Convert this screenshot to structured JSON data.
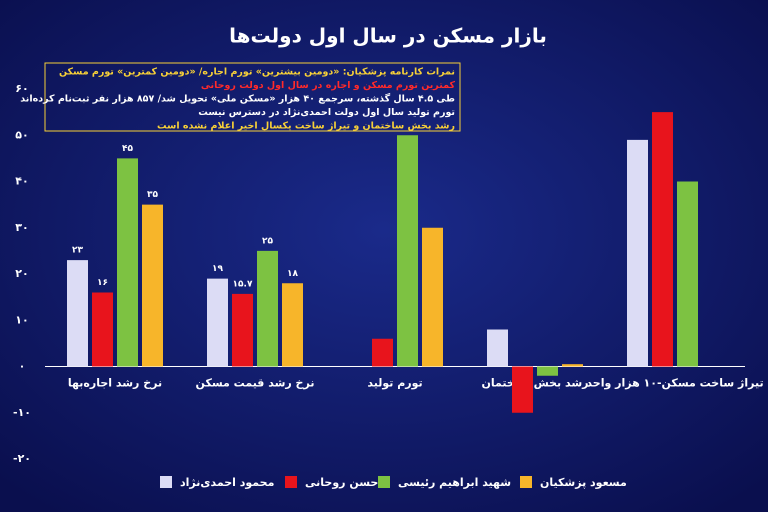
{
  "chart_data": {
    "type": "bar",
    "title": "بازار مسکن در سال اول دولت‌ها",
    "annotations": [
      "نمرات کارنامه پزشکیان: «دومین بیشترین» تورم اجاره/ «دومین کمترین» تورم مسکن",
      "کمترین تورم مسکن و اجاره در سال اول دولت روحانی",
      "طی ۴.۵ سال گذشته، سرجمع ۴۰ هزار «مسکن ملی» تحویل شد/ ۸۵۷ هزار نفر ثبت‌نام کرده‌اند",
      "تورم تولید سال اول دولت احمدی‌نژاد در دسترس نیست",
      "رشد بخش ساختمان و تیراژ ساخت یکسال اخیر اعلام نشده است"
    ],
    "annotation_colors": [
      "#f7d038",
      "#ff2a2a",
      "#ffffff",
      "#ffffff",
      "#f7d038"
    ],
    "categories": [
      "نرخ رشد اجاره‌بها",
      "نرخ رشد قیمت مسکن",
      "تورم تولید",
      "رشد بخش ساختمان",
      "تیراژ ساخت مسکن-۱۰ هزار واحد"
    ],
    "series": [
      {
        "name": "محمود احمدی‌نژاد",
        "color": "#dcdcf5",
        "values": [
          23,
          19,
          null,
          8,
          49
        ],
        "value_labels": [
          "۲۳",
          "۱۹",
          null,
          null,
          null
        ]
      },
      {
        "name": "حسن روحانی",
        "color": "#e8141c",
        "values": [
          16,
          15.7,
          6,
          -10,
          55
        ],
        "value_labels": [
          "۱۶",
          "۱۵.۷",
          null,
          null,
          null
        ]
      },
      {
        "name": "شهید ابراهیم رئیسی",
        "color": "#7dc242",
        "values": [
          45,
          25,
          50,
          -2,
          40
        ],
        "value_labels": [
          "۴۵",
          "۲۵",
          null,
          null,
          null
        ]
      },
      {
        "name": "مسعود پزشکیان",
        "color": "#f7b52a",
        "values": [
          35,
          18,
          30,
          0.5,
          null
        ],
        "value_labels": [
          "۳۵",
          "۱۸",
          null,
          null,
          null
        ]
      }
    ],
    "ylim": [
      -20,
      60
    ],
    "yticks": [
      {
        "value": -20,
        "label": "-۲۰"
      },
      {
        "value": -10,
        "label": "-۱۰"
      },
      {
        "value": 0,
        "label": "۰"
      },
      {
        "value": 10,
        "label": "۱۰"
      },
      {
        "value": 20,
        "label": "۲۰"
      },
      {
        "value": 30,
        "label": "۳۰"
      },
      {
        "value": 40,
        "label": "۴۰"
      },
      {
        "value": 50,
        "label": "۵۰"
      },
      {
        "value": 60,
        "label": "۶۰"
      }
    ],
    "grid": false
  }
}
